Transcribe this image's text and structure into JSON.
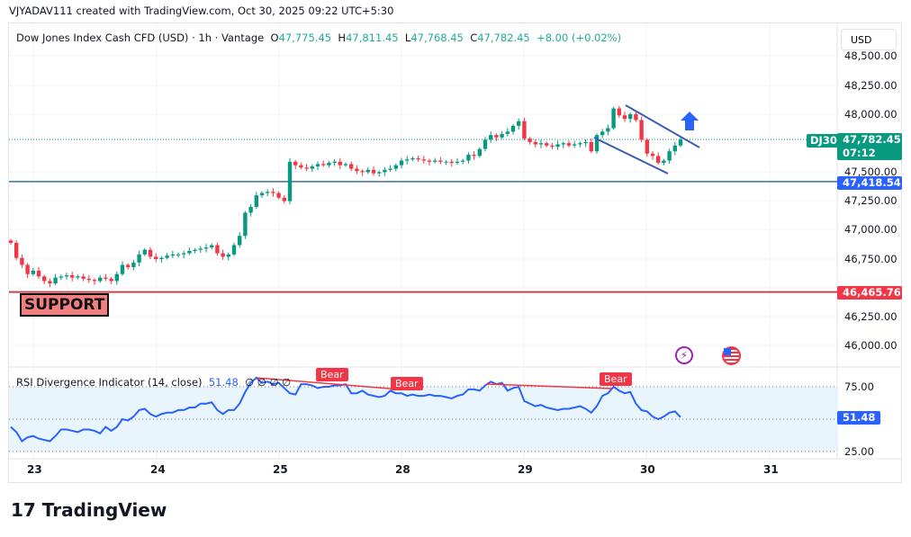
{
  "credit": "VJYADAV111 created with TradingView.com, Oct 30, 2025 09:22 UTC+5:30",
  "legend": {
    "symbol": "Dow Jones Index Cash CFD (USD) · 1h · Vantage",
    "o_label": "O",
    "o": "47,775.45",
    "h_label": "H",
    "h": "47,811.45",
    "l_label": "L",
    "l": "47,768.45",
    "c_label": "C",
    "c": "47,782.45",
    "change": "+8.00 (+0.02%)"
  },
  "currency_button": "USD",
  "price_axis": [
    "48,500.00",
    "48,250.00",
    "48,000.00",
    "47,500.00",
    "47,250.00",
    "47,000.00",
    "46,750.00",
    "46,250.00",
    "46,000.00"
  ],
  "tags": {
    "symbol": "DJ30",
    "last_price": "47,782.45",
    "countdown": "07:12",
    "blue_line": "47,418.54",
    "red_line": "46,465.76",
    "rsi": "51.48"
  },
  "support_label": "SUPPORT",
  "rsi": {
    "label": "RSI Divergence Indicator (14, close)",
    "value": "51.48",
    "extras": "∅ ∅ ∅ ∅",
    "axis": [
      "75.00",
      "25.00"
    ],
    "bear_labels": [
      "Bear",
      "Bear",
      "Bear"
    ]
  },
  "time_axis": [
    "23",
    "24",
    "25",
    "28",
    "29",
    "30",
    "31"
  ],
  "logo": "TradingView",
  "colors": {
    "up": "#089981",
    "down": "#f23645",
    "rsi": "#2962ff",
    "blue_line": "#2962ff",
    "support_line": "#f23645",
    "bear": "#f23645"
  },
  "chart_data": {
    "type": "candlestick",
    "ylim": [
      45900,
      48550
    ],
    "rsi_ylim": [
      20,
      90
    ],
    "horizontal_lines": [
      47418.54,
      46465.76
    ],
    "last_price": 47782.45,
    "closes": [
      46890,
      46760,
      46700,
      46620,
      46650,
      46600,
      46560,
      46540,
      46590,
      46600,
      46610,
      46590,
      46600,
      46580,
      46570,
      46560,
      46590,
      46580,
      46560,
      46620,
      46700,
      46680,
      46720,
      46790,
      46830,
      46770,
      46750,
      46760,
      46780,
      46790,
      46790,
      46800,
      46820,
      46830,
      46840,
      46850,
      46870,
      46800,
      46770,
      46790,
      46870,
      46950,
      47150,
      47200,
      47300,
      47320,
      47330,
      47320,
      47280,
      47250,
      47590,
      47560,
      47540,
      47530,
      47550,
      47570,
      47560,
      47580,
      47590,
      47560,
      47570,
      47530,
      47510,
      47500,
      47520,
      47490,
      47500,
      47520,
      47530,
      47560,
      47600,
      47610,
      47620,
      47610,
      47600,
      47590,
      47600,
      47590,
      47590,
      47580,
      47590,
      47600,
      47650,
      47640,
      47700,
      47780,
      47820,
      47800,
      47830,
      47850,
      47900,
      47940,
      47790,
      47760,
      47740,
      47750,
      47730,
      47720,
      47740,
      47750,
      47730,
      47740,
      47750,
      47760,
      47680,
      47820,
      47850,
      47880,
      48050,
      47990,
      47960,
      48000,
      47950,
      47780,
      47660,
      47640,
      47580,
      47600,
      47680,
      47730,
      47782.45
    ],
    "rsi_values": [
      44,
      40,
      33,
      36,
      37,
      35,
      34,
      33,
      37,
      42,
      42,
      41,
      40,
      42,
      42,
      41,
      39,
      44,
      41,
      44,
      50,
      49,
      52,
      57,
      58,
      54,
      52,
      54,
      55,
      55,
      57,
      57,
      59,
      59,
      62,
      62,
      63,
      57,
      54,
      57,
      57,
      62,
      71,
      78,
      82,
      78,
      79,
      77,
      78,
      74,
      70,
      69,
      77,
      77,
      76,
      74,
      75,
      75,
      76,
      76,
      77,
      70,
      70,
      72,
      69,
      68,
      67,
      68,
      72,
      70,
      70,
      68,
      69,
      68,
      68,
      69,
      68,
      68,
      67,
      66,
      68,
      69,
      73,
      73,
      72,
      76,
      79,
      77,
      78,
      72,
      74,
      75,
      64,
      62,
      60,
      61,
      59,
      58,
      57,
      58,
      58,
      59,
      60,
      58,
      55,
      60,
      68,
      70,
      75,
      72,
      70,
      71,
      62,
      57,
      56,
      52,
      50,
      52,
      55,
      56,
      51.48
    ]
  }
}
